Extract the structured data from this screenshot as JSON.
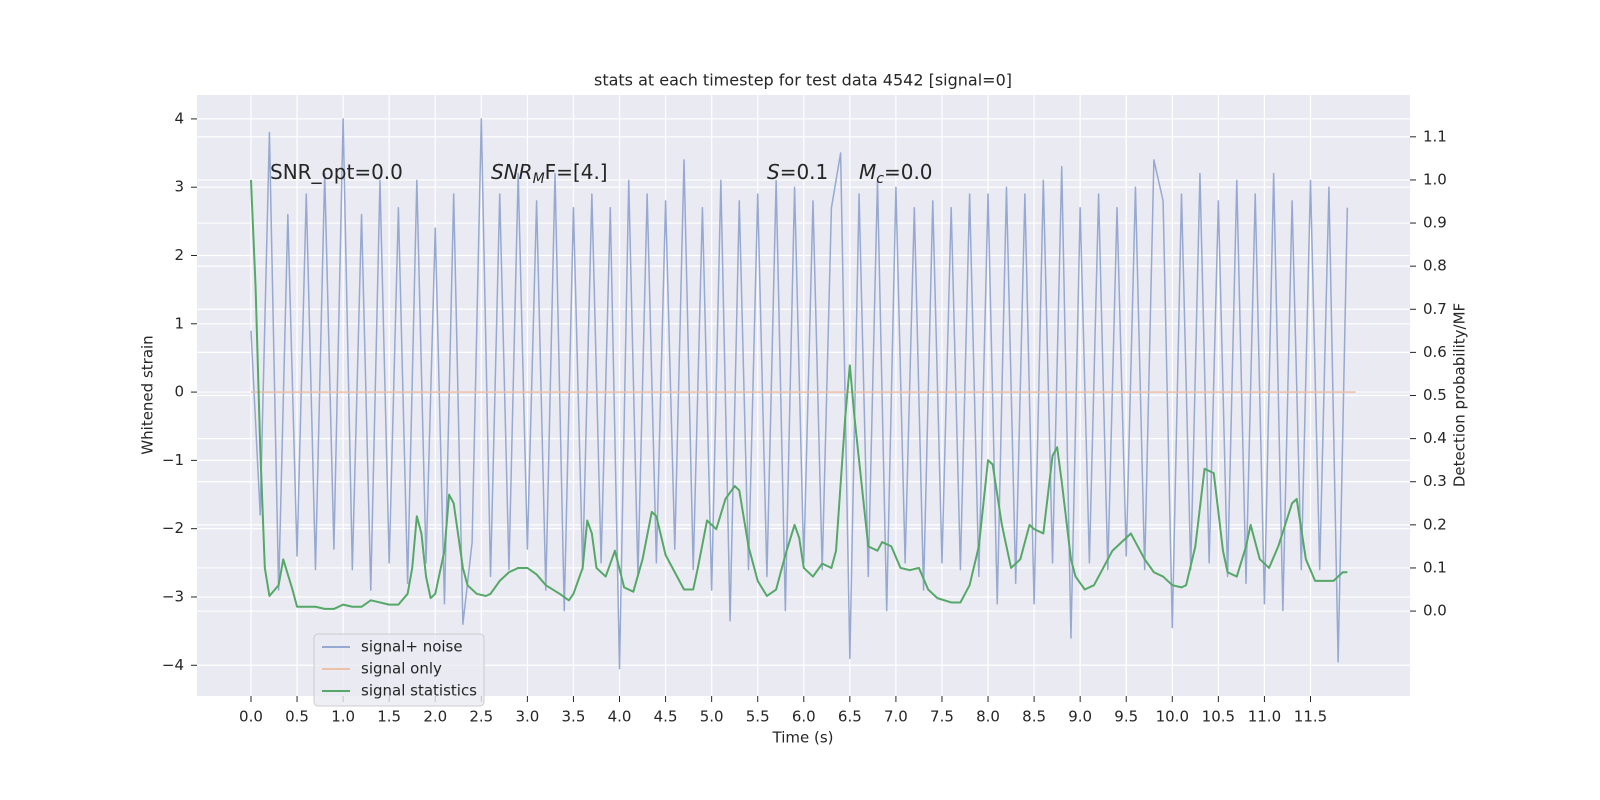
{
  "chart_data": {
    "type": "line",
    "title": "stats at each timestep for test data 4542 [signal=0]",
    "xlabel": "Time (s)",
    "ylabel": "Whitened strain",
    "y2label": "Detection probability/MF",
    "annotations": [
      {
        "main": "SNR_opt=0.0",
        "italic": false
      },
      {
        "main": "SNR",
        "sub": "M",
        "rest": "F=[4.]",
        "italic": true
      },
      {
        "main": "S",
        "rest": "=0.1",
        "italic": true
      },
      {
        "main": "M",
        "sub": "c",
        "rest": "=0.0",
        "italic": true
      }
    ],
    "xlim": [
      -0.586,
      12.58
    ],
    "ylim": [
      -4.45,
      4.35
    ],
    "y2lim": [
      -0.197,
      1.197
    ],
    "xticks": [
      {
        "value": 0,
        "label": "0.0"
      },
      {
        "value": 0.5,
        "label": "0.5"
      },
      {
        "value": 1,
        "label": "1.0"
      },
      {
        "value": 1.5,
        "label": "1.5"
      },
      {
        "value": 2,
        "label": "2.0"
      },
      {
        "value": 2.5,
        "label": "2.5"
      },
      {
        "value": 3,
        "label": "3.0"
      },
      {
        "value": 3.5,
        "label": "3.5"
      },
      {
        "value": 4,
        "label": "4.0"
      },
      {
        "value": 4.5,
        "label": "4.5"
      },
      {
        "value": 5,
        "label": "5.0"
      },
      {
        "value": 5.5,
        "label": "5.5"
      },
      {
        "value": 6,
        "label": "6.0"
      },
      {
        "value": 6.5,
        "label": "6.5"
      },
      {
        "value": 7,
        "label": "7.0"
      },
      {
        "value": 7.5,
        "label": "7.5"
      },
      {
        "value": 8,
        "label": "8.0"
      },
      {
        "value": 8.5,
        "label": "8.5"
      },
      {
        "value": 9,
        "label": "9.0"
      },
      {
        "value": 9.5,
        "label": "9.5"
      },
      {
        "value": 10,
        "label": "10.0"
      },
      {
        "value": 10.5,
        "label": "10.5"
      },
      {
        "value": 11,
        "label": "11.0"
      },
      {
        "value": 11.5,
        "label": "11.5"
      }
    ],
    "yticks": [
      {
        "value": -4,
        "label": "−4"
      },
      {
        "value": -3,
        "label": "−3"
      },
      {
        "value": -2,
        "label": "−2"
      },
      {
        "value": -1,
        "label": "−1"
      },
      0,
      1,
      2,
      3,
      4
    ],
    "y2ticks": [
      {
        "value": 0,
        "label": "0.0"
      },
      {
        "value": 0.1,
        "label": "0.1"
      },
      {
        "value": 0.2,
        "label": "0.2"
      },
      {
        "value": 0.3,
        "label": "0.3"
      },
      {
        "value": 0.4,
        "label": "0.4"
      },
      {
        "value": 0.5,
        "label": "0.5"
      },
      {
        "value": 0.6,
        "label": "0.6"
      },
      {
        "value": 0.7,
        "label": "0.7"
      },
      {
        "value": 0.8,
        "label": "0.8"
      },
      {
        "value": 0.9,
        "label": "0.9"
      },
      {
        "value": 1,
        "label": "1.0"
      },
      {
        "value": 1.1,
        "label": "1.1"
      }
    ],
    "grid": true,
    "legend": "lower left",
    "series": [
      {
        "name": "signal+ noise",
        "color": "#97a9d0",
        "x": [
          0,
          0.1,
          0.2,
          0.3,
          0.4,
          0.5,
          0.6,
          0.7,
          0.8,
          0.9,
          1,
          1.1,
          1.2,
          1.3,
          1.4,
          1.5,
          1.6,
          1.7,
          1.8,
          1.9,
          2,
          2.1,
          2.2,
          2.3,
          2.4,
          2.5,
          2.6,
          2.7,
          2.8,
          2.9,
          3,
          3.1,
          3.2,
          3.3,
          3.4,
          3.5,
          3.6,
          3.7,
          3.8,
          3.9,
          4,
          4.1,
          4.2,
          4.3,
          4.4,
          4.5,
          4.6,
          4.7,
          4.8,
          4.9,
          5,
          5.1,
          5.2,
          5.3,
          5.4,
          5.5,
          5.6,
          5.7,
          5.8,
          5.9,
          6,
          6.1,
          6.2,
          6.3,
          6.4,
          6.5,
          6.6,
          6.7,
          6.8,
          6.9,
          7,
          7.1,
          7.2,
          7.3,
          7.4,
          7.5,
          7.6,
          7.7,
          7.8,
          7.9,
          8,
          8.1,
          8.2,
          8.3,
          8.4,
          8.5,
          8.6,
          8.7,
          8.8,
          8.9,
          9,
          9.1,
          9.2,
          9.3,
          9.4,
          9.5,
          9.6,
          9.7,
          9.8,
          9.9,
          10,
          10.1,
          10.2,
          10.3,
          10.4,
          10.5,
          10.6,
          10.7,
          10.8,
          10.9,
          11,
          11.1,
          11.2,
          11.3,
          11.4,
          11.5,
          11.6,
          11.7,
          11.8,
          11.9
        ],
        "values": [
          0.9,
          -1.8,
          3.8,
          -2.9,
          2.6,
          -2.4,
          2.9,
          -2.6,
          3.2,
          -2.3,
          4.0,
          -2.6,
          2.6,
          -2.9,
          3.1,
          -2.5,
          2.7,
          -2.8,
          3.1,
          -2.5,
          2.4,
          -3.1,
          2.9,
          -3.4,
          -2.2,
          4.0,
          -2.7,
          2.9,
          -2.6,
          3.2,
          -2.3,
          2.8,
          -2.9,
          3.2,
          -3.2,
          2.7,
          -2.6,
          2.9,
          -2.5,
          2.7,
          -4.05,
          3.1,
          -2.7,
          2.9,
          -2.5,
          2.8,
          -2.3,
          3.4,
          -2.6,
          2.7,
          -2.9,
          3.1,
          -3.35,
          2.8,
          -2.6,
          2.9,
          -2.7,
          3.1,
          -3.2,
          3.0,
          -2.5,
          2.8,
          -2.6,
          2.7,
          3.5,
          -3.9,
          2.9,
          -2.7,
          3.1,
          -3.2,
          3.0,
          -2.5,
          2.7,
          -2.9,
          2.8,
          -2.5,
          2.7,
          -2.6,
          2.9,
          -2.7,
          2.9,
          -3.1,
          3.0,
          -2.8,
          2.9,
          -3.1,
          3.1,
          -2.5,
          3.3,
          -3.6,
          2.7,
          -2.5,
          2.9,
          -2.6,
          2.7,
          -2.4,
          3.0,
          -2.6,
          3.4,
          2.8,
          -3.45,
          2.9,
          -2.6,
          3.2,
          -2.5,
          2.8,
          -2.7,
          3.1,
          -2.8,
          2.9,
          -3.1,
          3.2,
          -3.2,
          2.8,
          -2.6,
          3.1,
          -2.6,
          3.0,
          -3.95,
          2.7
        ]
      },
      {
        "name": "signal only",
        "color": "#edc1a8",
        "x": [
          0,
          11.99
        ],
        "values": [
          0,
          0
        ]
      },
      {
        "name": "signal statistics",
        "color": "#55a868",
        "axis": "y2",
        "x": [
          0,
          0.05,
          0.1,
          0.15,
          0.2,
          0.3,
          0.35,
          0.45,
          0.5,
          0.6,
          0.7,
          0.8,
          0.9,
          1,
          1.1,
          1.2,
          1.3,
          1.4,
          1.5,
          1.6,
          1.7,
          1.75,
          1.8,
          1.85,
          1.9,
          1.95,
          2,
          2.1,
          2.15,
          2.2,
          2.3,
          2.35,
          2.45,
          2.55,
          2.6,
          2.7,
          2.8,
          2.9,
          3,
          3.1,
          3.2,
          3.35,
          3.45,
          3.5,
          3.6,
          3.65,
          3.7,
          3.75,
          3.85,
          3.95,
          4.05,
          4.15,
          4.25,
          4.35,
          4.4,
          4.5,
          4.6,
          4.7,
          4.8,
          4.85,
          4.95,
          5.05,
          5.15,
          5.25,
          5.3,
          5.4,
          5.5,
          5.6,
          5.7,
          5.8,
          5.9,
          5.95,
          6,
          6.1,
          6.2,
          6.3,
          6.35,
          6.45,
          6.5,
          6.55,
          6.65,
          6.7,
          6.8,
          6.85,
          6.95,
          7.05,
          7.15,
          7.25,
          7.35,
          7.45,
          7.6,
          7.7,
          7.8,
          7.9,
          8,
          8.05,
          8.15,
          8.25,
          8.35,
          8.45,
          8.5,
          8.6,
          8.7,
          8.75,
          8.8,
          8.9,
          8.95,
          9.05,
          9.15,
          9.25,
          9.35,
          9.45,
          9.55,
          9.6,
          9.7,
          9.8,
          9.9,
          10,
          10.1,
          10.15,
          10.25,
          10.35,
          10.45,
          10.55,
          10.6,
          10.7,
          10.8,
          10.85,
          10.95,
          11.05,
          11.15,
          11.3,
          11.35,
          11.45,
          11.55,
          11.75,
          11.85,
          11.9
        ],
        "values": [
          1.0,
          0.75,
          0.38,
          0.1,
          0.035,
          0.06,
          0.12,
          0.05,
          0.01,
          0.01,
          0.01,
          0.005,
          0.005,
          0.015,
          0.01,
          0.01,
          0.025,
          0.02,
          0.015,
          0.015,
          0.04,
          0.1,
          0.22,
          0.18,
          0.08,
          0.03,
          0.04,
          0.14,
          0.27,
          0.25,
          0.1,
          0.06,
          0.04,
          0.035,
          0.04,
          0.07,
          0.09,
          0.1,
          0.1,
          0.085,
          0.06,
          0.04,
          0.025,
          0.04,
          0.1,
          0.21,
          0.18,
          0.1,
          0.08,
          0.14,
          0.055,
          0.045,
          0.12,
          0.23,
          0.22,
          0.13,
          0.09,
          0.05,
          0.05,
          0.1,
          0.21,
          0.19,
          0.26,
          0.29,
          0.28,
          0.15,
          0.07,
          0.035,
          0.05,
          0.13,
          0.2,
          0.17,
          0.1,
          0.08,
          0.11,
          0.1,
          0.14,
          0.45,
          0.57,
          0.45,
          0.25,
          0.15,
          0.14,
          0.16,
          0.15,
          0.1,
          0.095,
          0.1,
          0.05,
          0.03,
          0.02,
          0.02,
          0.06,
          0.15,
          0.35,
          0.34,
          0.2,
          0.1,
          0.12,
          0.2,
          0.19,
          0.18,
          0.36,
          0.38,
          0.3,
          0.12,
          0.08,
          0.05,
          0.06,
          0.1,
          0.14,
          0.16,
          0.18,
          0.16,
          0.12,
          0.09,
          0.08,
          0.06,
          0.055,
          0.06,
          0.15,
          0.33,
          0.32,
          0.14,
          0.09,
          0.08,
          0.15,
          0.2,
          0.12,
          0.1,
          0.15,
          0.25,
          0.26,
          0.12,
          0.07,
          0.07,
          0.09,
          0.09
        ]
      }
    ]
  }
}
